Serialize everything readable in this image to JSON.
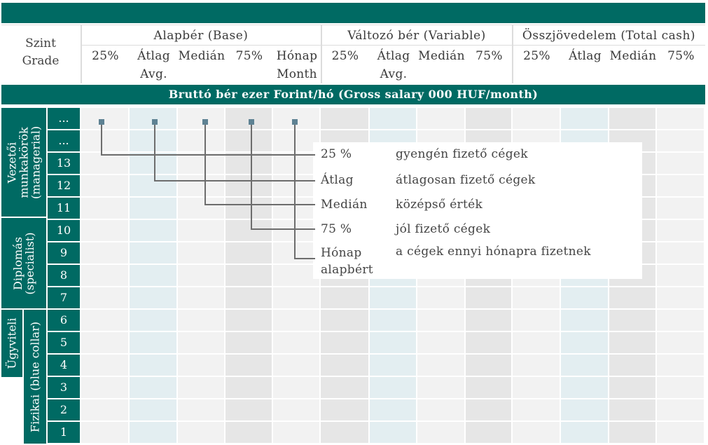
{
  "header": {
    "grade_label": [
      "Szint",
      "Grade"
    ],
    "groups": [
      "Alapbér (Base)",
      "Változó bér (Variable)",
      "Összjövedelem (Total cash)"
    ],
    "columns": [
      {
        "l1": "25%",
        "l2": ""
      },
      {
        "l1": "Átlag",
        "l2": "Avg."
      },
      {
        "l1": "Medián",
        "l2": ""
      },
      {
        "l1": "75%",
        "l2": ""
      },
      {
        "l1": "Hónap",
        "l2": "Month"
      },
      {
        "l1": "25%",
        "l2": ""
      },
      {
        "l1": "Átlag",
        "l2": "Avg."
      },
      {
        "l1": "Medián",
        "l2": ""
      },
      {
        "l1": "75%",
        "l2": ""
      },
      {
        "l1": "25%",
        "l2": ""
      },
      {
        "l1": "Átlag",
        "l2": ""
      },
      {
        "l1": "Medián",
        "l2": ""
      },
      {
        "l1": "75%",
        "l2": ""
      }
    ]
  },
  "unit_banner": "Bruttó bér ezer Forint/hó (Gross salary 000 HUF/month)",
  "groups_side": {
    "managerial": "Vezetői munkakörök (managerial)",
    "specialist": "Diplomás (specialist)",
    "clerical": "Ügyviteli",
    "blue_collar": "Fizikai (blue collar)"
  },
  "grades": [
    "...",
    "...",
    "13",
    "12",
    "11",
    "10",
    "9",
    "8",
    "7",
    "6",
    "5",
    "4",
    "3",
    "2",
    "1"
  ],
  "legend": [
    {
      "key": "25 %",
      "desc": "gyengén fizető cégek"
    },
    {
      "key": "Átlag",
      "desc": "átlagosan fizető cégek"
    },
    {
      "key": "Medián",
      "desc": "középső érték"
    },
    {
      "key": "75 %",
      "desc": "jól fizető cégek"
    },
    {
      "key": "Hónap alapbért",
      "desc": "a cégek ennyi hónapra fizetnek"
    }
  ],
  "colors": {
    "teal": "#006a63",
    "cell_light": "#f2f2f2",
    "cell_gray": "#e6e6e6",
    "cell_blue": "#e3eef1",
    "connector": "#6d6d6d",
    "marker": "#5e8293"
  }
}
